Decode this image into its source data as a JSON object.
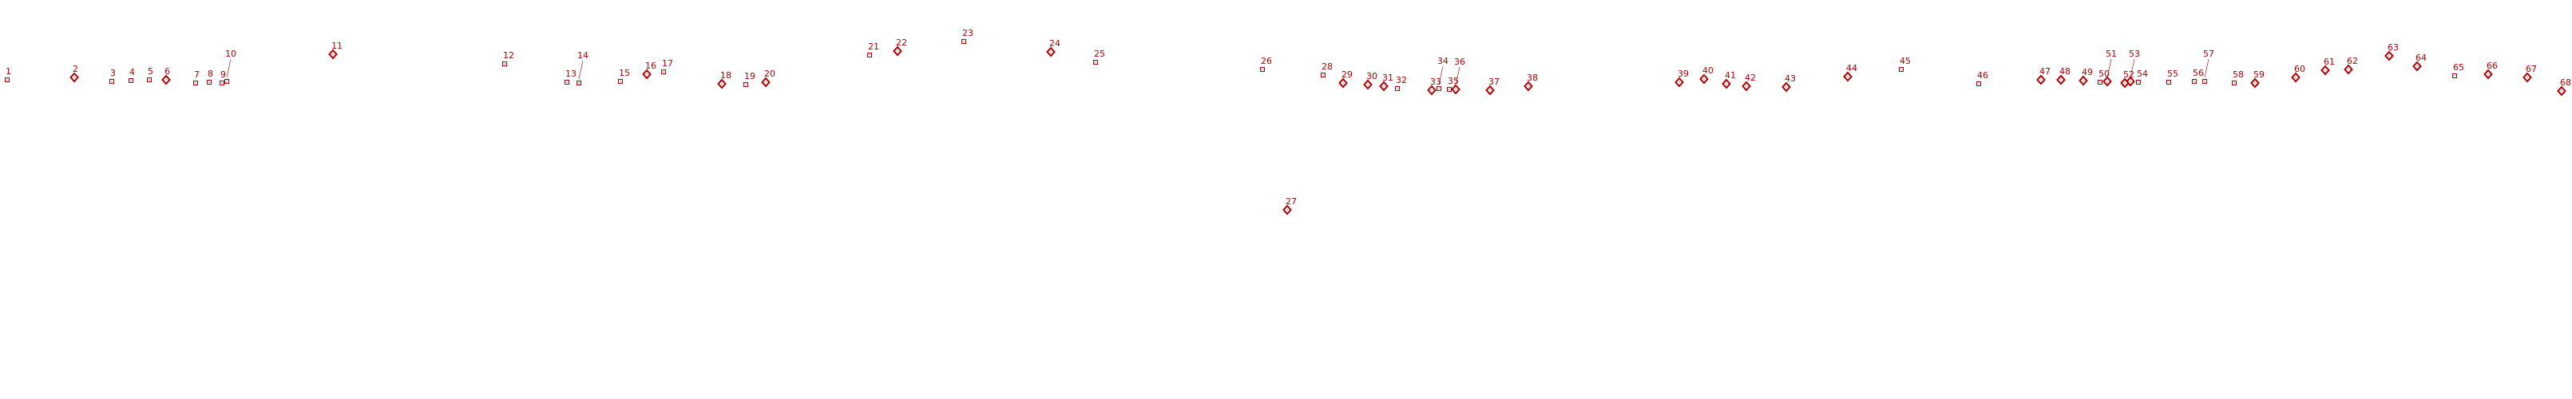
{
  "chart_data": {
    "type": "scatter",
    "title": "",
    "xlabel": "",
    "ylabel": "",
    "grid": false,
    "axes_visible": false,
    "xlim": [
      0,
      3221
    ],
    "ylim": [
      0,
      500
    ],
    "colors": {
      "marker": "#b00000",
      "label": "#b00000"
    },
    "marker_types": [
      "diamond",
      "square"
    ],
    "points": [
      {
        "label": "1",
        "x": 9,
        "y": 400,
        "marker": "square"
      },
      {
        "label": "2",
        "x": 93,
        "y": 403,
        "marker": "diamond"
      },
      {
        "label": "3",
        "x": 140,
        "y": 398,
        "marker": "square"
      },
      {
        "label": "4",
        "x": 164,
        "y": 399,
        "marker": "square"
      },
      {
        "label": "5",
        "x": 187,
        "y": 400,
        "marker": "square"
      },
      {
        "label": "6",
        "x": 208,
        "y": 400,
        "marker": "diamond"
      },
      {
        "label": "7",
        "x": 245,
        "y": 396,
        "marker": "square"
      },
      {
        "label": "8",
        "x": 262,
        "y": 397,
        "marker": "square"
      },
      {
        "label": "9",
        "x": 278,
        "y": 396,
        "marker": "square"
      },
      {
        "label": "10",
        "x": 284,
        "y": 398,
        "marker": "square"
      },
      {
        "label": "11",
        "x": 417,
        "y": 432,
        "marker": "diamond"
      },
      {
        "label": "12",
        "x": 632,
        "y": 420,
        "marker": "square"
      },
      {
        "label": "13",
        "x": 710,
        "y": 397,
        "marker": "square"
      },
      {
        "label": "14",
        "x": 725,
        "y": 396,
        "marker": "square"
      },
      {
        "label": "15",
        "x": 777,
        "y": 398,
        "marker": "square"
      },
      {
        "label": "16",
        "x": 810,
        "y": 407,
        "marker": "diamond"
      },
      {
        "label": "17",
        "x": 831,
        "y": 410,
        "marker": "square"
      },
      {
        "label": "18",
        "x": 904,
        "y": 395,
        "marker": "diamond"
      },
      {
        "label": "19",
        "x": 934,
        "y": 394,
        "marker": "square"
      },
      {
        "label": "20",
        "x": 959,
        "y": 397,
        "marker": "diamond"
      },
      {
        "label": "21",
        "x": 1089,
        "y": 431,
        "marker": "square"
      },
      {
        "label": "22",
        "x": 1124,
        "y": 436,
        "marker": "diamond"
      },
      {
        "label": "23",
        "x": 1207,
        "y": 448,
        "marker": "square"
      },
      {
        "label": "24",
        "x": 1316,
        "y": 435,
        "marker": "diamond"
      },
      {
        "label": "25",
        "x": 1372,
        "y": 422,
        "marker": "square"
      },
      {
        "label": "26",
        "x": 1581,
        "y": 413,
        "marker": "square"
      },
      {
        "label": "27",
        "x": 1612,
        "y": 237,
        "marker": "diamond"
      },
      {
        "label": "28",
        "x": 1657,
        "y": 406,
        "marker": "square"
      },
      {
        "label": "29",
        "x": 1682,
        "y": 396,
        "marker": "diamond"
      },
      {
        "label": "30",
        "x": 1713,
        "y": 394,
        "marker": "diamond"
      },
      {
        "label": "31",
        "x": 1733,
        "y": 392,
        "marker": "diamond"
      },
      {
        "label": "32",
        "x": 1750,
        "y": 389,
        "marker": "square"
      },
      {
        "label": "33",
        "x": 1793,
        "y": 387,
        "marker": "diamond"
      },
      {
        "label": "34",
        "x": 1802,
        "y": 389,
        "marker": "square"
      },
      {
        "label": "35",
        "x": 1815,
        "y": 388,
        "marker": "square"
      },
      {
        "label": "36",
        "x": 1823,
        "y": 388,
        "marker": "diamond"
      },
      {
        "label": "37",
        "x": 1866,
        "y": 387,
        "marker": "diamond"
      },
      {
        "label": "38",
        "x": 1914,
        "y": 392,
        "marker": "diamond"
      },
      {
        "label": "39",
        "x": 2103,
        "y": 397,
        "marker": "diamond"
      },
      {
        "label": "40",
        "x": 2134,
        "y": 401,
        "marker": "diamond"
      },
      {
        "label": "41",
        "x": 2162,
        "y": 395,
        "marker": "diamond"
      },
      {
        "label": "42",
        "x": 2187,
        "y": 392,
        "marker": "diamond"
      },
      {
        "label": "43",
        "x": 2237,
        "y": 391,
        "marker": "diamond"
      },
      {
        "label": "44",
        "x": 2314,
        "y": 404,
        "marker": "diamond"
      },
      {
        "label": "45",
        "x": 2381,
        "y": 413,
        "marker": "square"
      },
      {
        "label": "46",
        "x": 2478,
        "y": 395,
        "marker": "square"
      },
      {
        "label": "47",
        "x": 2556,
        "y": 400,
        "marker": "diamond"
      },
      {
        "label": "48",
        "x": 2581,
        "y": 400,
        "marker": "diamond"
      },
      {
        "label": "49",
        "x": 2609,
        "y": 399,
        "marker": "diamond"
      },
      {
        "label": "50",
        "x": 2630,
        "y": 397,
        "marker": "square"
      },
      {
        "label": "51",
        "x": 2639,
        "y": 398,
        "marker": "diamond"
      },
      {
        "label": "52",
        "x": 2661,
        "y": 396,
        "marker": "diamond"
      },
      {
        "label": "53",
        "x": 2668,
        "y": 398,
        "marker": "diamond"
      },
      {
        "label": "54",
        "x": 2678,
        "y": 397,
        "marker": "square"
      },
      {
        "label": "55",
        "x": 2716,
        "y": 397,
        "marker": "square"
      },
      {
        "label": "56",
        "x": 2748,
        "y": 398,
        "marker": "square"
      },
      {
        "label": "57",
        "x": 2761,
        "y": 398,
        "marker": "square"
      },
      {
        "label": "58",
        "x": 2798,
        "y": 396,
        "marker": "square"
      },
      {
        "label": "59",
        "x": 2824,
        "y": 396,
        "marker": "diamond"
      },
      {
        "label": "60",
        "x": 2875,
        "y": 403,
        "marker": "diamond"
      },
      {
        "label": "61",
        "x": 2912,
        "y": 412,
        "marker": "diamond"
      },
      {
        "label": "62",
        "x": 2941,
        "y": 413,
        "marker": "diamond"
      },
      {
        "label": "63",
        "x": 2992,
        "y": 430,
        "marker": "diamond"
      },
      {
        "label": "64",
        "x": 3027,
        "y": 417,
        "marker": "diamond"
      },
      {
        "label": "65",
        "x": 3074,
        "y": 405,
        "marker": "square"
      },
      {
        "label": "66",
        "x": 3116,
        "y": 407,
        "marker": "diamond"
      },
      {
        "label": "67",
        "x": 3165,
        "y": 403,
        "marker": "diamond"
      },
      {
        "label": "68",
        "x": 3208,
        "y": 386,
        "marker": "diamond"
      }
    ]
  }
}
